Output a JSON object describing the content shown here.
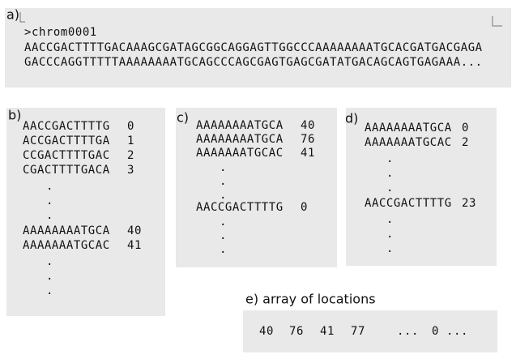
{
  "panels": {
    "a": {
      "label": "a)",
      "header": ">chrom0001",
      "lines": [
        "AACCGACTTTTGACAAAGCGATAGCGGCAGGAGTTGGCCCAAAAAAAATGCACGATGACGAGA",
        "GACCCAGGTTTTTAAAAAAAATGCAGCCCAGCGAGTGAGCGATATGACAGCAGTGAGAAA..."
      ]
    },
    "b": {
      "label": "b)",
      "rows": [
        [
          "AACCGACTTTTG",
          0
        ],
        [
          "ACCGACTTTTGA",
          1
        ],
        [
          "CCGACTTTTGAC",
          2
        ],
        [
          "CGACTTTTGACA",
          3
        ],
        [
          "."
        ],
        [
          "."
        ],
        [
          "."
        ],
        [
          "AAAAAAAATGCA",
          40
        ],
        [
          "AAAAAAATGCAC",
          41
        ],
        [
          "."
        ],
        [
          "."
        ],
        [
          "."
        ]
      ]
    },
    "c": {
      "label": "c)",
      "rows": [
        [
          "AAAAAAAATGCA",
          40
        ],
        [
          "AAAAAAAATGCA",
          76
        ],
        [
          "AAAAAAATGCAC",
          41
        ],
        [
          "."
        ],
        [
          "."
        ],
        [
          "."
        ],
        [
          "AACCGACTTTTG",
          0
        ],
        [
          "."
        ],
        [
          "."
        ],
        [
          "."
        ]
      ]
    },
    "d": {
      "label": "d)",
      "rows": [
        [
          "AAAAAAAATGCA",
          0
        ],
        [
          "AAAAAAATGCAC",
          2
        ],
        [
          "."
        ],
        [
          "."
        ],
        [
          "."
        ],
        [
          "AACCGACTTTTG",
          23
        ],
        [
          "."
        ],
        [
          "."
        ],
        [
          "."
        ]
      ]
    },
    "e": {
      "label": "e) array of locations",
      "items": [
        40,
        76,
        41,
        77,
        "...",
        0,
        "..."
      ]
    }
  }
}
